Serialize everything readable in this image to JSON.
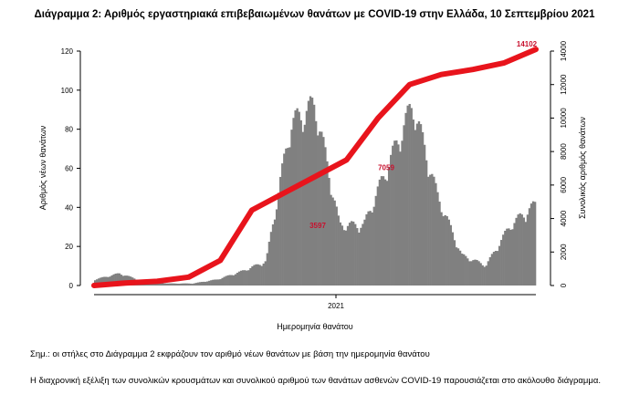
{
  "chart_data": {
    "type": "bar",
    "title": "Διάγραμμα 2: Αριθμός εργαστηριακά επιβεβαιωμένων θανάτων με COVID-19 στην Ελλάδα, 10 Σεπτεμβρίου 2021",
    "xlabel": "Ημερομηνία θανάτου",
    "ylabel": "Αριθμός νέων θανάτων",
    "y2label": "Συνολικός αριθμός θανάτων",
    "x_tick_label": "2021",
    "ylim": [
      0,
      125
    ],
    "yticks": [
      0,
      20,
      40,
      60,
      80,
      100,
      120
    ],
    "y2lim": [
      0,
      14500
    ],
    "y2ticks": [
      0,
      2000,
      4000,
      6000,
      8000,
      10000,
      12000,
      14000
    ],
    "grid": false,
    "colors": {
      "bars": "#808080",
      "cumulative_line": "#e8141c",
      "label_text": "#c8102e"
    },
    "bar_series": {
      "name": "Αριθμός νέων θανάτων",
      "approx_monthly_profile": [
        {
          "period": "Mar 2020",
          "value": 3
        },
        {
          "period": "Apr 2020",
          "value": 6
        },
        {
          "period": "May 2020",
          "value": 2
        },
        {
          "period": "Jun 2020",
          "value": 1
        },
        {
          "period": "Jul 2020",
          "value": 1
        },
        {
          "period": "Aug 2020",
          "value": 3
        },
        {
          "period": "Sep 2020",
          "value": 7
        },
        {
          "period": "Oct 2020",
          "value": 12
        },
        {
          "period": "Nov 2020",
          "value": 80
        },
        {
          "period": "Dec 2020",
          "value": 90
        },
        {
          "period": "Jan 2021",
          "value": 30
        },
        {
          "period": "Feb 2021",
          "value": 30
        },
        {
          "period": "Mar 2021",
          "value": 60
        },
        {
          "period": "Apr 2021",
          "value": 90
        },
        {
          "period": "May 2021",
          "value": 45
        },
        {
          "period": "Jun 2021",
          "value": 15
        },
        {
          "period": "Jul 2021",
          "value": 10
        },
        {
          "period": "Aug 2021",
          "value": 30
        },
        {
          "period": "Sep 2021",
          "value": 40
        }
      ]
    },
    "line_series": {
      "name": "Συνολικός αριθμός θανάτων",
      "approx_points": [
        {
          "period": "Mar 2020",
          "value": 0
        },
        {
          "period": "May 2020",
          "value": 150
        },
        {
          "period": "Aug 2020",
          "value": 250
        },
        {
          "period": "Oct 2020",
          "value": 500
        },
        {
          "period": "Nov 2020",
          "value": 1500
        },
        {
          "period": "Dec 2020",
          "value": 4500
        },
        {
          "period": "Jan 2021",
          "value": 5500
        },
        {
          "period": "Feb 2021",
          "value": 6500
        },
        {
          "period": "Mar 2021",
          "value": 7500
        },
        {
          "period": "Apr 2021",
          "value": 10000
        },
        {
          "period": "May 2021",
          "value": 12000
        },
        {
          "period": "Jun 2021",
          "value": 12600
        },
        {
          "period": "Jul 2021",
          "value": 12900
        },
        {
          "period": "Aug 2021",
          "value": 13300
        },
        {
          "period": "Sep 2021",
          "value": 14102
        }
      ]
    },
    "annotations": [
      {
        "text": "3597",
        "value": 3597
      },
      {
        "text": "7059",
        "value": 7059
      },
      {
        "text": "14102",
        "value": 14102
      }
    ]
  },
  "notes": {
    "note_1": "Σημ.: οι στήλες στο Διάγραμμα 2 εκφράζουν τον αριθμό νέων θανάτων με βάση την ημερομηνία θανάτου",
    "note_2": "Η διαχρονική εξέλιξη των συνολικών κρουσμάτων και συνολικού αριθμού των θανάτων ασθενών COVID-19 παρουσιάζεται στο ακόλουθο διάγραμμα."
  }
}
